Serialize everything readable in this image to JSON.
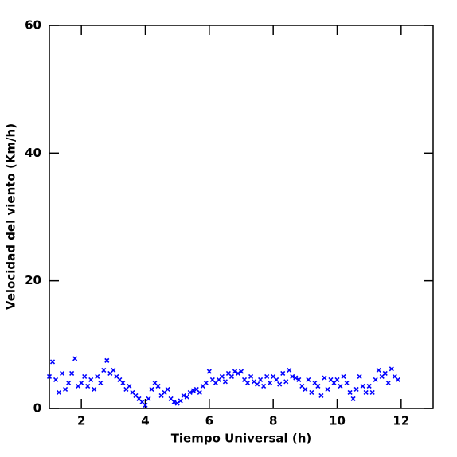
{
  "chart_data": {
    "type": "scatter",
    "x_label": "Tiempo Universal (h)",
    "y_label": "Velocidad del viento (Km/h)",
    "xlim": [
      1,
      13
    ],
    "ylim": [
      0,
      60
    ],
    "xticks": [
      2,
      4,
      6,
      8,
      10,
      12
    ],
    "yticks": [
      0,
      20,
      40,
      60
    ],
    "color": "#0000ff",
    "x": [
      1.0,
      1.1,
      1.2,
      1.3,
      1.4,
      1.5,
      1.6,
      1.7,
      1.8,
      1.9,
      2.0,
      2.1,
      2.2,
      2.3,
      2.4,
      2.5,
      2.6,
      2.7,
      2.8,
      2.9,
      3.0,
      3.1,
      3.2,
      3.3,
      3.4,
      3.5,
      3.6,
      3.7,
      3.8,
      3.9,
      4.0,
      4.1,
      4.2,
      4.3,
      4.4,
      4.5,
      4.6,
      4.7,
      4.8,
      4.9,
      5.0,
      5.1,
      5.2,
      5.3,
      5.4,
      5.5,
      5.6,
      5.7,
      5.8,
      5.9,
      6.0,
      6.1,
      6.2,
      6.3,
      6.4,
      6.5,
      6.6,
      6.7,
      6.8,
      6.9,
      7.0,
      7.1,
      7.2,
      7.3,
      7.4,
      7.5,
      7.6,
      7.7,
      7.8,
      7.9,
      8.0,
      8.1,
      8.2,
      8.3,
      8.4,
      8.5,
      8.6,
      8.7,
      8.8,
      8.9,
      9.0,
      9.1,
      9.2,
      9.3,
      9.4,
      9.5,
      9.6,
      9.7,
      9.8,
      9.9,
      10.0,
      10.1,
      10.2,
      10.3,
      10.4,
      10.5,
      10.6,
      10.7,
      10.8,
      10.9,
      11.0,
      11.1,
      11.2,
      11.3,
      11.4,
      11.5,
      11.6,
      11.7,
      11.8,
      11.9
    ],
    "y": [
      5,
      7.3,
      4.5,
      2.5,
      5.5,
      3,
      4,
      5.5,
      7.8,
      3.5,
      4,
      5,
      3.5,
      4.5,
      3,
      5,
      4,
      6,
      7.5,
      5.5,
      6,
      5,
      4.5,
      4,
      3,
      3.5,
      2.5,
      2,
      1.5,
      1,
      0.5,
      1.5,
      3,
      4,
      3.5,
      2,
      2.5,
      3,
      1.5,
      1,
      0.8,
      1.2,
      2,
      1.8,
      2.5,
      2.8,
      3,
      2.5,
      3.5,
      4,
      5.8,
      4.5,
      4,
      4.5,
      5,
      4.2,
      5.5,
      5,
      5.8,
      5.5,
      5.8,
      4.5,
      4,
      5,
      4.2,
      3.8,
      4.5,
      3.5,
      5,
      4,
      5,
      4.5,
      3.8,
      5.5,
      4.2,
      6,
      5,
      4.8,
      4.5,
      3.5,
      3,
      4.5,
      2.5,
      4,
      3.5,
      2,
      4.8,
      3,
      4.5,
      4,
      4.5,
      3.5,
      5,
      4,
      2.5,
      1.5,
      3,
      5,
      3.5,
      2.5,
      3.5,
      2.5,
      4.5,
      6,
      5,
      5.5,
      4,
      6.2,
      5,
      4.5
    ]
  }
}
